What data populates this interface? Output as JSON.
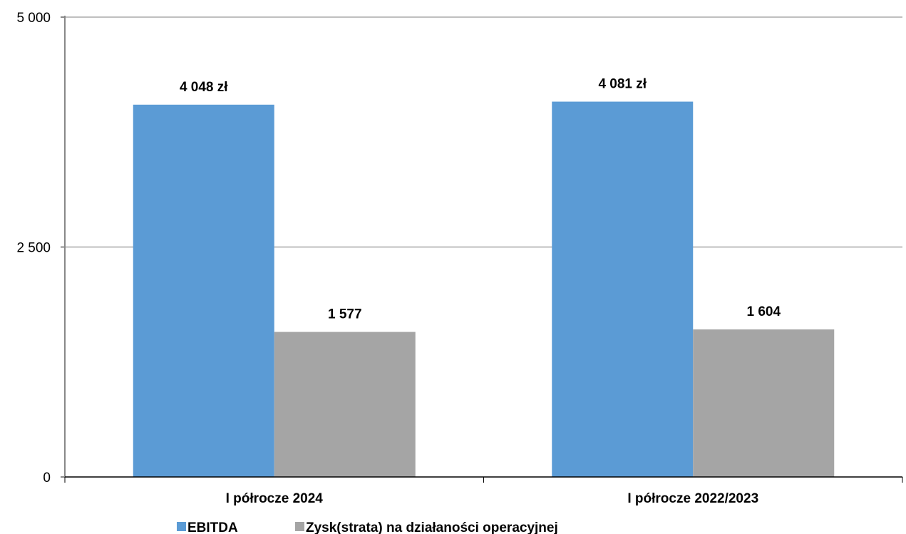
{
  "chart_data": {
    "type": "bar",
    "categories": [
      "I półrocze 2024",
      "I półrocze 2022/2023"
    ],
    "series": [
      {
        "name": "EBITDA",
        "values": [
          4048,
          4081
        ],
        "labels": [
          "4 048 zł",
          "4 081 zł"
        ],
        "color": "#5b9bd5"
      },
      {
        "name": "Zysk(strata) na działaności operacyjnej",
        "values": [
          1577,
          1604
        ],
        "labels": [
          "1 577",
          "1 604"
        ],
        "color": "#a5a5a5"
      }
    ],
    "ylim": [
      0,
      5000
    ],
    "yticks": [
      {
        "value": 0,
        "label": "0"
      },
      {
        "value": 2500,
        "label": "2 500"
      },
      {
        "value": 5000,
        "label": "5 000"
      }
    ],
    "gridlines": true,
    "gridline_color": "#bfbfbf",
    "axis_color": "#888888",
    "legend_position": "bottom-left",
    "title": "",
    "xlabel": "",
    "ylabel": ""
  }
}
